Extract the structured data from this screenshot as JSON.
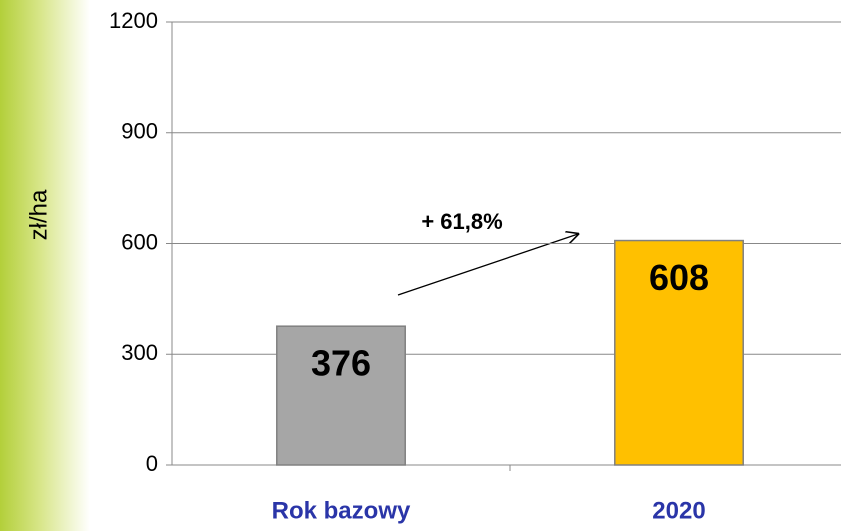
{
  "chart_data": {
    "type": "bar",
    "categories": [
      "Rok bazowy",
      "2020"
    ],
    "values": [
      376,
      608
    ],
    "colors": [
      "#a6a6a6",
      "#ffc000"
    ],
    "ylabel": "zł/ha",
    "annotation": "+ 61,8%",
    "ylim": [
      0,
      1200
    ],
    "yticks": [
      0,
      300,
      600,
      900,
      1200
    ],
    "grid": true
  }
}
